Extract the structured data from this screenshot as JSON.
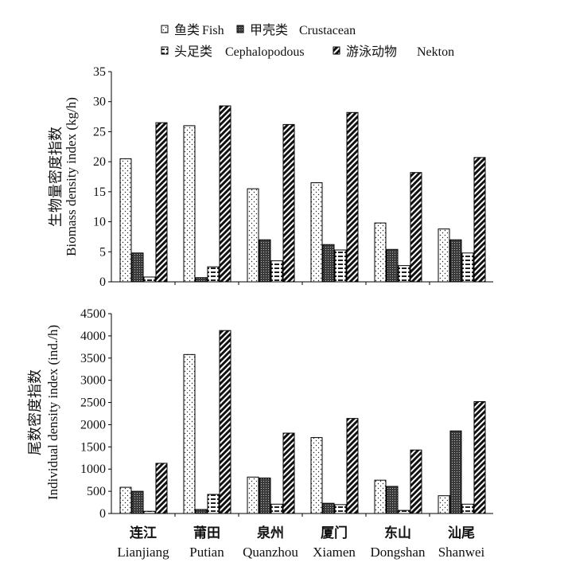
{
  "chart_data": {
    "type": "bar",
    "categories": [
      {
        "cn": "连江",
        "en": "Lianjiang"
      },
      {
        "cn": "莆田",
        "en": "Putian"
      },
      {
        "cn": "泉州",
        "en": "Quanzhou"
      },
      {
        "cn": "厦门",
        "en": "Xiamen"
      },
      {
        "cn": "东山",
        "en": "Dongshan"
      },
      {
        "cn": "汕尾",
        "en": "Shanwei"
      }
    ],
    "legend": [
      {
        "cn": "鱼类",
        "en": "Fish",
        "pattern": "dots"
      },
      {
        "cn": "甲壳类",
        "en": "Crustacean",
        "pattern": "dense"
      },
      {
        "cn": "头足类",
        "en": "Cephalopodous",
        "pattern": "hlines"
      },
      {
        "cn": "游泳动物",
        "en": "Nekton",
        "pattern": "diag"
      }
    ],
    "legend_placement": "top",
    "panels": [
      {
        "ylabel_cn": "生物量密度指数",
        "ylabel_en": "Biomass density index (kg/h)",
        "ylim": [
          0,
          35
        ],
        "yticks": [
          0,
          5,
          10,
          15,
          20,
          25,
          30,
          35
        ],
        "series": [
          {
            "values": [
              20.5,
              26.0,
              15.5,
              16.5,
              9.8,
              8.8
            ]
          },
          {
            "values": [
              4.8,
              0.7,
              7.0,
              6.2,
              5.4,
              7.0
            ]
          },
          {
            "values": [
              0.8,
              2.5,
              3.5,
              5.3,
              2.7,
              4.8
            ]
          },
          {
            "values": [
              26.5,
              29.3,
              26.2,
              28.2,
              18.2,
              20.7
            ]
          }
        ]
      },
      {
        "ylabel_cn": "尾数密度指数",
        "ylabel_en": "Individual density index (ind./h)",
        "ylim": [
          0,
          4500
        ],
        "yticks": [
          0,
          500,
          1000,
          1500,
          2000,
          2500,
          3000,
          3500,
          4000,
          4500
        ],
        "series": [
          {
            "values": [
              590,
              3580,
              820,
              1710,
              750,
              400
            ]
          },
          {
            "values": [
              500,
              90,
              800,
              230,
              610,
              1860
            ]
          },
          {
            "values": [
              50,
              430,
              210,
              200,
              70,
              210
            ]
          },
          {
            "values": [
              1130,
              4120,
              1810,
              2140,
              1430,
              2520
            ]
          }
        ]
      }
    ]
  }
}
